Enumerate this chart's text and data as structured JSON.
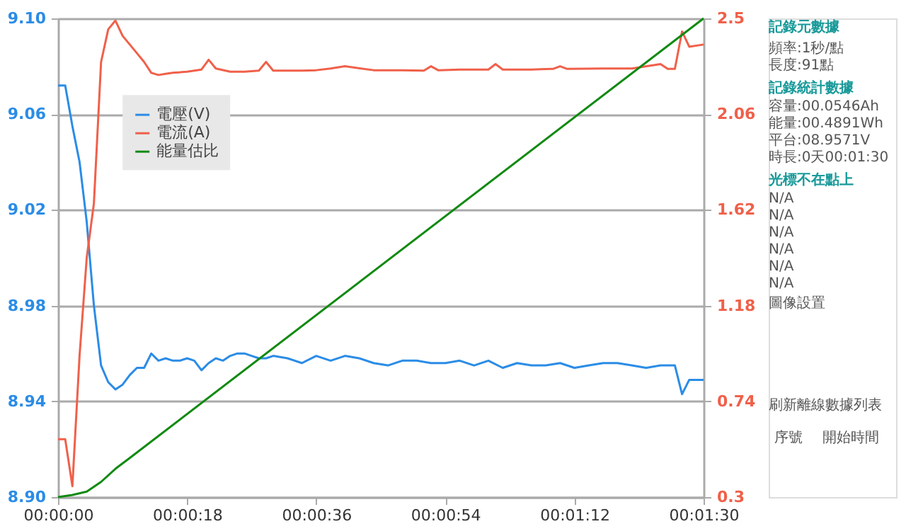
{
  "chart_data": {
    "type": "line",
    "x": [
      0,
      1,
      2,
      3,
      4,
      5,
      6,
      7,
      8,
      9,
      10,
      11,
      12,
      13,
      14,
      15,
      16,
      17,
      18,
      19,
      20,
      21,
      22,
      23,
      24,
      25,
      26,
      27,
      28,
      29,
      30,
      32,
      34,
      36,
      38,
      40,
      42,
      44,
      46,
      48,
      50,
      52,
      54,
      56,
      58,
      60,
      62,
      64,
      66,
      68,
      70,
      72,
      74,
      76,
      78,
      80,
      82,
      84,
      86,
      87,
      88,
      90
    ],
    "series": [
      {
        "name": "電壓(V)",
        "color": "#2b8ce6",
        "values": [
          9.072,
          9.072,
          9.055,
          9.04,
          9.015,
          8.98,
          8.955,
          8.948,
          8.945,
          8.947,
          8.951,
          8.954,
          8.954,
          8.96,
          8.957,
          8.958,
          8.957,
          8.957,
          8.958,
          8.957,
          8.953,
          8.956,
          8.958,
          8.957,
          8.959,
          8.96,
          8.96,
          8.959,
          8.958,
          8.958,
          8.959,
          8.958,
          8.956,
          8.959,
          8.957,
          8.959,
          8.958,
          8.956,
          8.955,
          8.957,
          8.957,
          8.956,
          8.956,
          8.957,
          8.955,
          8.957,
          8.954,
          8.956,
          8.955,
          8.955,
          8.956,
          8.954,
          8.955,
          8.956,
          8.956,
          8.955,
          8.954,
          8.955,
          8.955,
          8.943,
          8.949,
          8.949
        ]
      },
      {
        "name": "電流(A)",
        "color": "#f0604a",
        "axis": "y2",
        "x": [
          0,
          1,
          2,
          3,
          4,
          5,
          6,
          7,
          8,
          9,
          10,
          11,
          12,
          13,
          14,
          15,
          16,
          18,
          20,
          21,
          22,
          24,
          26,
          28,
          29,
          30,
          32,
          34,
          36,
          38,
          40,
          44,
          48,
          51,
          52,
          53,
          56,
          60,
          61,
          62,
          66,
          69,
          70,
          71,
          76,
          80,
          84,
          85,
          86,
          87,
          88,
          90
        ],
        "values": [
          0.566,
          0.566,
          0.35,
          0.95,
          1.4,
          1.65,
          2.3,
          2.45,
          2.49,
          2.42,
          2.38,
          2.34,
          2.3,
          2.25,
          2.24,
          2.245,
          2.25,
          2.255,
          2.265,
          2.31,
          2.27,
          2.255,
          2.255,
          2.26,
          2.3,
          2.26,
          2.26,
          2.26,
          2.262,
          2.27,
          2.28,
          2.262,
          2.262,
          2.26,
          2.28,
          2.262,
          2.265,
          2.265,
          2.29,
          2.265,
          2.265,
          2.268,
          2.28,
          2.268,
          2.27,
          2.27,
          2.29,
          2.268,
          2.268,
          2.44,
          2.37,
          2.38
        ]
      },
      {
        "name": "能量估比",
        "color": "#118a11",
        "axis": "y2",
        "x": [
          0,
          2,
          4,
          6,
          8,
          10,
          90
        ],
        "values": [
          0.3,
          0.31,
          0.325,
          0.37,
          0.43,
          0.48,
          2.5
        ]
      }
    ],
    "xlim": [
      0,
      90
    ],
    "xticks": [
      {
        "value": 0,
        "label": "00:00:00"
      },
      {
        "value": 18,
        "label": "00:00:18"
      },
      {
        "value": 36,
        "label": "00:00:36"
      },
      {
        "value": 54,
        "label": "00:00:54"
      },
      {
        "value": 72,
        "label": "00:01:12"
      },
      {
        "value": 90,
        "label": "00:01:30"
      }
    ],
    "ylim": [
      8.9,
      9.1
    ],
    "yticks": [
      {
        "value": 8.9,
        "label": "8.90"
      },
      8.94,
      8.98,
      9.02,
      9.06,
      {
        "value": 9.1,
        "label": "9.10"
      }
    ],
    "y2lim": [
      0.3,
      2.5
    ],
    "y2ticks": [
      0.3,
      0.74,
      1.18,
      1.62,
      2.06,
      2.5
    ],
    "grid": "y",
    "legend": "top left",
    "annotations": [
      "記錄元數據",
      "頻率:1秒/點",
      "長度:91點",
      "記錄統計數據",
      "容量:00.0546Ah",
      "能量:00.4891Wh",
      "平台:08.9571V",
      "時長:0天00:01:30",
      "光標不在點上",
      "N/A",
      "N/A",
      "N/A",
      "N/A",
      "N/A",
      "N/A",
      "圖像設置",
      "刷新離線數據列表",
      "序號",
      "開始時間"
    ]
  }
}
